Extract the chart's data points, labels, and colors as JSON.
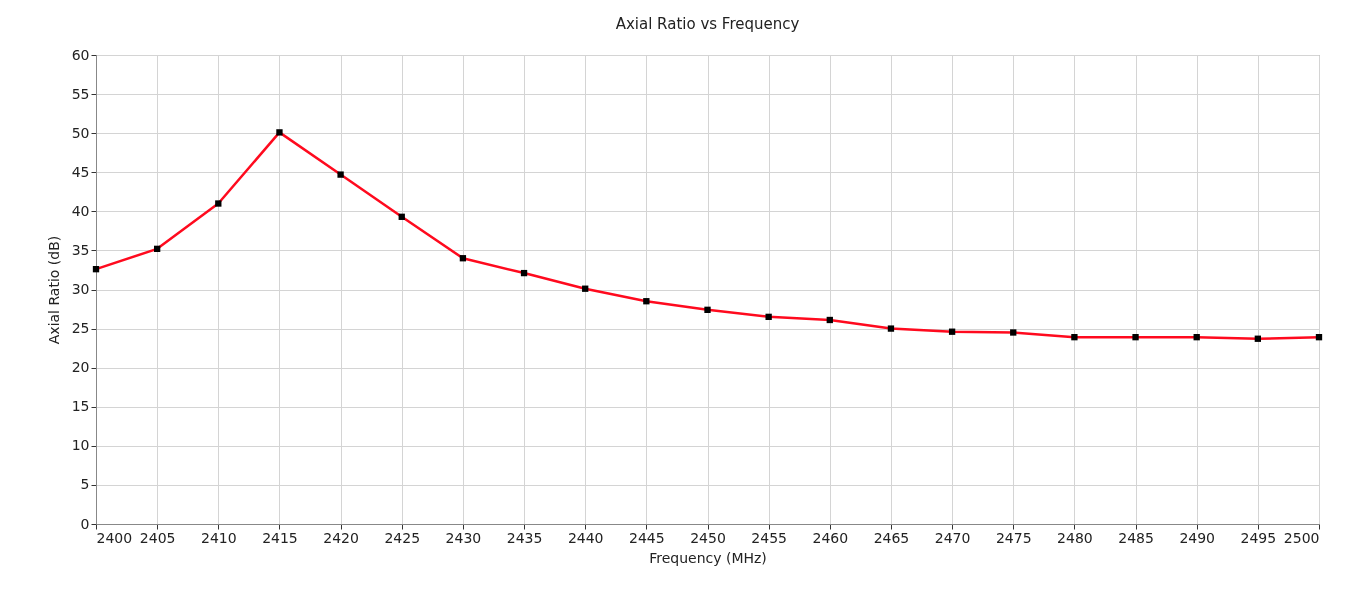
{
  "chart_data": {
    "type": "line",
    "title": "Axial Ratio vs Frequency",
    "xlabel": "Frequency (MHz)",
    "ylabel": "Axial Ratio (dB)",
    "x": [
      2400,
      2405,
      2410,
      2415,
      2420,
      2425,
      2430,
      2435,
      2440,
      2445,
      2450,
      2455,
      2460,
      2465,
      2470,
      2475,
      2480,
      2485,
      2490,
      2495,
      2500
    ],
    "series": [
      {
        "color": "#ff0a1e",
        "values": [
          32.6,
          35.2,
          41.0,
          50.1,
          44.7,
          39.3,
          34.0,
          32.1,
          30.1,
          28.5,
          27.4,
          26.5,
          26.1,
          25.0,
          24.6,
          24.5,
          23.9,
          23.9,
          23.9,
          23.7,
          23.9
        ]
      }
    ],
    "xlim": [
      2400,
      2500
    ],
    "xticks": [
      2400,
      2405,
      2410,
      2415,
      2420,
      2425,
      2430,
      2435,
      2440,
      2445,
      2450,
      2455,
      2460,
      2465,
      2470,
      2475,
      2480,
      2485,
      2490,
      2495,
      2500
    ],
    "ylim": [
      0,
      60
    ],
    "yticks": [
      0,
      5,
      10,
      15,
      20,
      25,
      30,
      35,
      40,
      45,
      50,
      55,
      60
    ],
    "grid": true,
    "marker": "square",
    "line_style": "solid"
  }
}
